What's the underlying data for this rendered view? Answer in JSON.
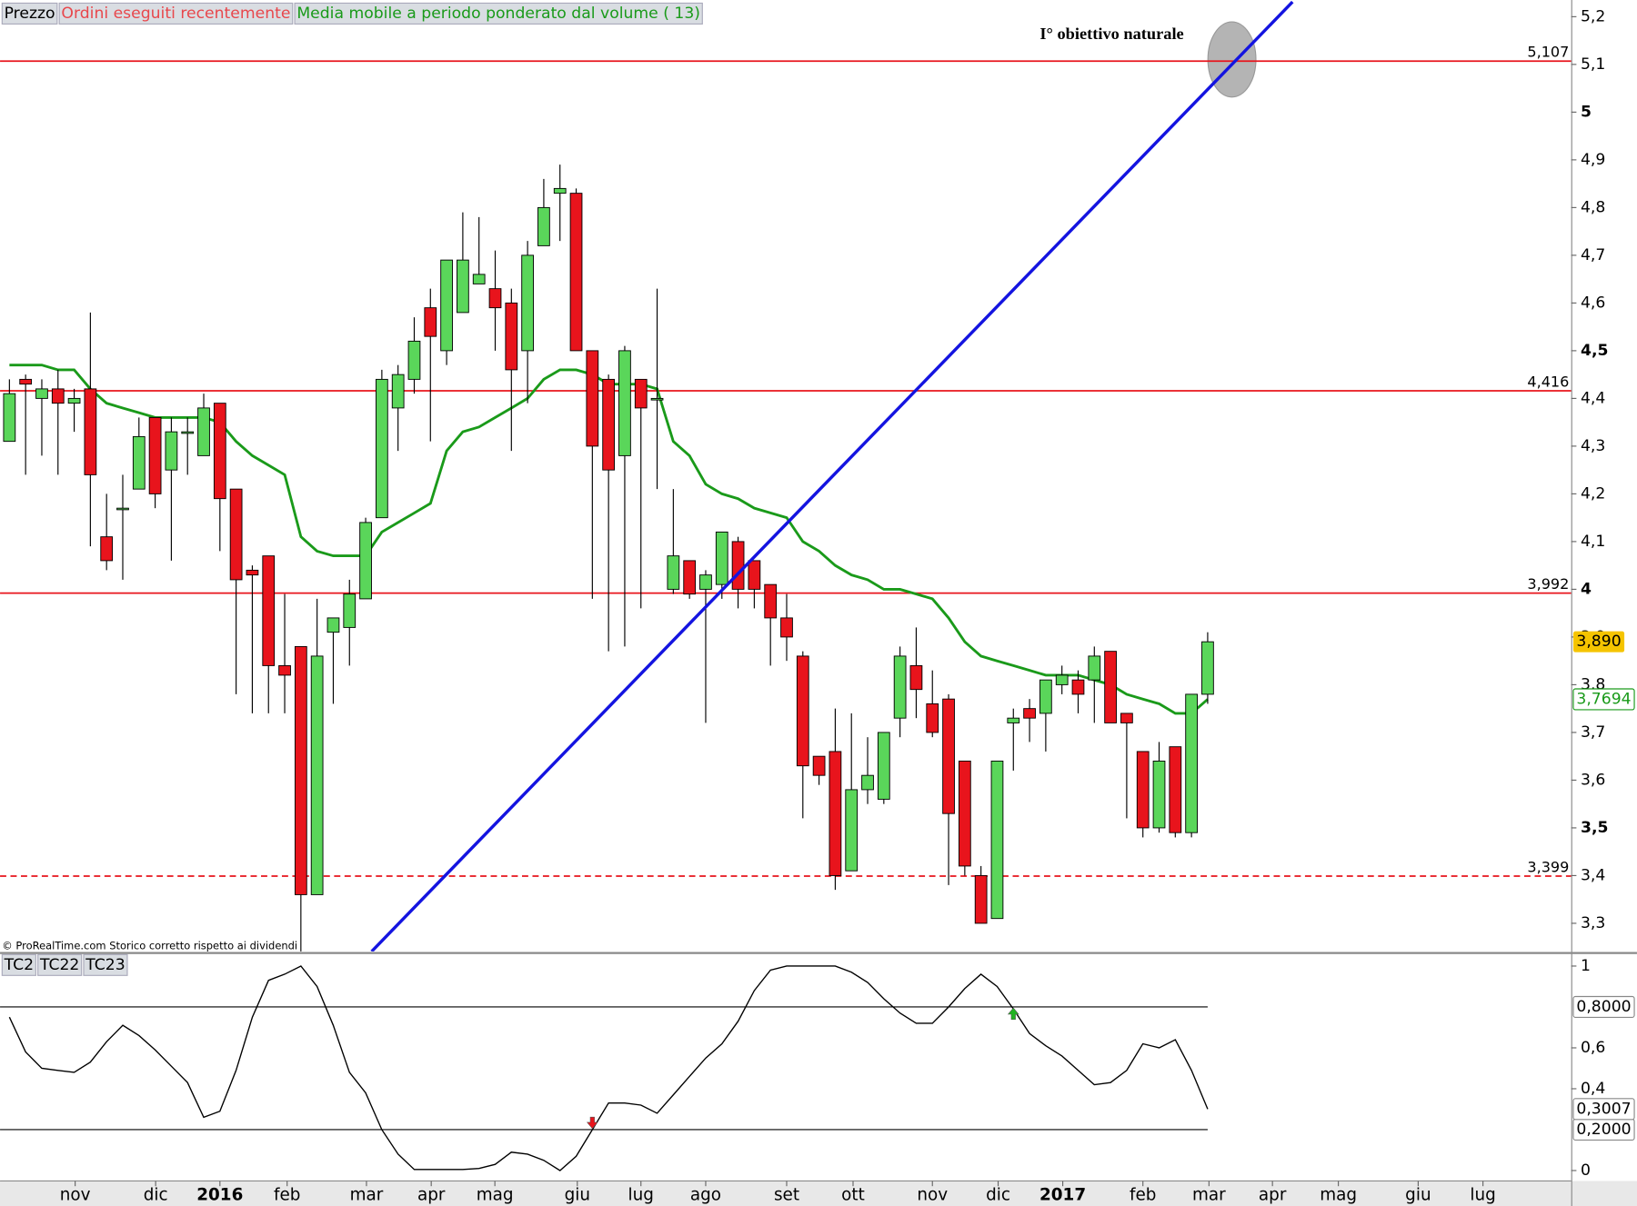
{
  "chart_data": [
    {
      "type": "candlestick",
      "labels": [
        {
          "text": "Prezzo",
          "color": "#000000"
        },
        {
          "text": "Ordini eseguiti recentemente",
          "color": "#e8474c"
        }
      ],
      "x": [
        0,
        1,
        2,
        3,
        4,
        5,
        6,
        7,
        8,
        9,
        10,
        11,
        12,
        13,
        14,
        15,
        16,
        17,
        18,
        19,
        20,
        21,
        22,
        23,
        24,
        25,
        26,
        27,
        28,
        29,
        30,
        31,
        32,
        33,
        34,
        35,
        36,
        37,
        38,
        39,
        40,
        41,
        42,
        43,
        44,
        45,
        46,
        47,
        48,
        49,
        50,
        51,
        52,
        53,
        54,
        55,
        56,
        57,
        58,
        59,
        60,
        61,
        62,
        63,
        64,
        65,
        66,
        67,
        68,
        69,
        70,
        71,
        72,
        73,
        74
      ],
      "open": [
        4.31,
        4.44,
        4.4,
        4.42,
        4.39,
        4.42,
        4.11,
        4.17,
        4.21,
        4.36,
        4.25,
        4.33,
        4.28,
        4.39,
        4.21,
        4.04,
        4.07,
        3.84,
        3.88,
        3.36,
        3.91,
        3.92,
        3.98,
        4.15,
        4.38,
        4.44,
        4.59,
        4.5,
        4.58,
        4.64,
        4.63,
        4.6,
        4.5,
        4.72,
        4.83,
        4.83,
        4.5,
        4.44,
        4.28,
        4.44,
        4.4,
        4.0,
        4.06,
        4.0,
        4.01,
        4.1,
        4.06,
        4.01,
        3.94,
        3.86,
        3.65,
        3.66,
        3.41,
        3.58,
        3.56,
        3.73,
        3.84,
        3.76,
        3.77,
        3.64,
        3.4,
        3.31,
        3.72,
        3.75,
        3.74,
        3.8,
        3.81,
        3.81,
        3.87,
        3.74,
        3.66,
        3.5,
        3.67,
        3.49,
        3.78
      ],
      "high": [
        4.44,
        4.45,
        4.44,
        4.46,
        4.42,
        4.58,
        4.2,
        4.24,
        4.36,
        4.36,
        4.36,
        4.36,
        4.41,
        4.39,
        4.21,
        4.05,
        4.07,
        3.99,
        3.88,
        3.98,
        3.94,
        4.02,
        4.15,
        4.46,
        4.47,
        4.57,
        4.63,
        4.69,
        4.79,
        4.78,
        4.71,
        4.63,
        4.73,
        4.86,
        4.89,
        4.84,
        4.5,
        4.45,
        4.51,
        4.44,
        4.63,
        4.21,
        4.06,
        4.04,
        4.12,
        4.11,
        4.06,
        4.01,
        3.99,
        3.87,
        3.65,
        3.75,
        3.74,
        3.69,
        3.7,
        3.88,
        3.92,
        3.83,
        3.78,
        3.64,
        3.42,
        3.64,
        3.75,
        3.77,
        3.81,
        3.84,
        3.83,
        3.88,
        3.87,
        3.74,
        3.66,
        3.68,
        3.67,
        3.78,
        3.91
      ],
      "low": [
        4.31,
        4.24,
        4.28,
        4.24,
        4.33,
        4.09,
        4.04,
        4.02,
        4.21,
        4.17,
        4.06,
        4.24,
        4.28,
        4.08,
        3.78,
        3.74,
        3.74,
        3.74,
        3.24,
        3.36,
        3.76,
        3.84,
        3.98,
        4.15,
        4.29,
        4.41,
        4.31,
        4.47,
        4.58,
        4.64,
        4.5,
        4.29,
        4.39,
        4.72,
        4.73,
        4.5,
        3.98,
        3.87,
        3.88,
        3.96,
        4.21,
        3.99,
        3.98,
        3.72,
        3.98,
        3.96,
        3.96,
        3.84,
        3.85,
        3.52,
        3.59,
        3.37,
        3.41,
        3.55,
        3.55,
        3.69,
        3.73,
        3.69,
        3.38,
        3.4,
        3.3,
        3.31,
        3.62,
        3.68,
        3.66,
        3.78,
        3.74,
        3.72,
        3.72,
        3.52,
        3.48,
        3.49,
        3.48,
        3.48,
        3.76
      ],
      "close": [
        4.41,
        4.43,
        4.42,
        4.39,
        4.4,
        4.24,
        4.06,
        4.17,
        4.32,
        4.2,
        4.33,
        4.33,
        4.38,
        4.19,
        4.02,
        4.03,
        3.84,
        3.82,
        3.36,
        3.86,
        3.94,
        3.99,
        4.14,
        4.44,
        4.45,
        4.52,
        4.53,
        4.69,
        4.69,
        4.66,
        4.59,
        4.46,
        4.7,
        4.8,
        4.84,
        4.5,
        4.3,
        4.25,
        4.5,
        4.38,
        4.4,
        4.07,
        3.99,
        4.03,
        4.12,
        4.0,
        4.0,
        3.94,
        3.9,
        3.63,
        3.61,
        3.4,
        3.58,
        3.61,
        3.7,
        3.86,
        3.79,
        3.7,
        3.53,
        3.42,
        3.3,
        3.64,
        3.73,
        3.73,
        3.81,
        3.82,
        3.78,
        3.86,
        3.72,
        3.72,
        3.5,
        3.64,
        3.49,
        3.78,
        3.89
      ],
      "last_close_label": "3,890",
      "up_color": "#5ad65a",
      "down_color": "#e8141c",
      "last_close_color": "#f5c400",
      "series": [
        {
          "name": "Media mobile a periodo ponderato dal volume ( 13)",
          "color": "#1a9a1a",
          "values": [
            4.47,
            4.47,
            4.47,
            4.46,
            4.46,
            4.42,
            4.39,
            4.38,
            4.37,
            4.36,
            4.36,
            4.36,
            4.36,
            4.35,
            4.31,
            4.28,
            4.26,
            4.24,
            4.11,
            4.08,
            4.07,
            4.07,
            4.07,
            4.12,
            4.14,
            4.16,
            4.18,
            4.29,
            4.33,
            4.34,
            4.36,
            4.38,
            4.4,
            4.44,
            4.46,
            4.46,
            4.45,
            4.43,
            4.43,
            4.43,
            4.42,
            4.31,
            4.28,
            4.22,
            4.2,
            4.19,
            4.17,
            4.16,
            4.15,
            4.1,
            4.08,
            4.05,
            4.03,
            4.02,
            4.0,
            4.0,
            3.99,
            3.98,
            3.94,
            3.89,
            3.86,
            3.85,
            3.84,
            3.83,
            3.82,
            3.82,
            3.82,
            3.81,
            3.8,
            3.78,
            3.77,
            3.76,
            3.74,
            3.74,
            3.7694
          ],
          "last_value_label": "3,7694"
        }
      ],
      "levels": [
        {
          "value": 5.107,
          "label": "5,107",
          "style": "solid"
        },
        {
          "value": 4.416,
          "label": "4,416",
          "style": "solid"
        },
        {
          "value": 3.992,
          "label": "3,992",
          "style": "solid"
        },
        {
          "value": 3.399,
          "label": "3,399",
          "style": "dashed"
        }
      ],
      "level_color": "#e8141c",
      "trendline": {
        "x": [
          22.37,
          79.24
        ],
        "y": [
          3.241,
          5.231
        ],
        "color": "#1414e0"
      },
      "annotation": "I° obiettivo naturale",
      "footer": "© ProRealTime.com Storico corretto rispetto ai dividendi",
      "xlim": [
        -0.58,
        96.45
      ],
      "ylim": [
        3.241,
        5.235
      ],
      "yticks": [
        {
          "value": 3.3,
          "label": "3,3"
        },
        {
          "value": 3.4,
          "label": "3,4"
        },
        {
          "value": 3.5,
          "label": "3,5"
        },
        {
          "value": 3.6,
          "label": "3,6"
        },
        {
          "value": 3.7,
          "label": "3,7"
        },
        {
          "value": 3.8,
          "label": "3,8"
        },
        {
          "value": 3.9,
          "label": "3,9"
        },
        4,
        {
          "value": 4.1,
          "label": "4,1"
        },
        {
          "value": 4.2,
          "label": "4,2"
        },
        {
          "value": 4.3,
          "label": "4,3"
        },
        {
          "value": 4.4,
          "label": "4,4"
        },
        {
          "value": 4.5,
          "label": "4,5"
        },
        {
          "value": 4.6,
          "label": "4,6"
        },
        {
          "value": 4.7,
          "label": "4,7"
        },
        {
          "value": 4.8,
          "label": "4,8"
        },
        {
          "value": 4.9,
          "label": "4,9"
        },
        5,
        {
          "value": 5.1,
          "label": "5,1"
        },
        {
          "value": 5.2,
          "label": "5,2"
        }
      ]
    },
    {
      "type": "line",
      "labels": [
        "TC2",
        "TC22",
        "TC23"
      ],
      "x": [
        0,
        1,
        2,
        3,
        4,
        5,
        6,
        7,
        8,
        9,
        10,
        11,
        12,
        13,
        14,
        15,
        16,
        17,
        18,
        19,
        20,
        21,
        22,
        23,
        24,
        25,
        26,
        27,
        28,
        29,
        30,
        31,
        32,
        33,
        34,
        35,
        36,
        37,
        38,
        39,
        40,
        41,
        42,
        43,
        44,
        45,
        46,
        47,
        48,
        49,
        50,
        51,
        52,
        53,
        54,
        55,
        56,
        57,
        58,
        59,
        60,
        61,
        62,
        63,
        64,
        65,
        66,
        67,
        68,
        69,
        70,
        71,
        72,
        73,
        74
      ],
      "values": [
        0.75,
        0.58,
        0.5,
        0.49,
        0.48,
        0.53,
        0.63,
        0.71,
        0.66,
        0.59,
        0.51,
        0.43,
        0.26,
        0.29,
        0.49,
        0.75,
        0.93,
        0.96,
        1.0,
        0.9,
        0.71,
        0.48,
        0.38,
        0.2,
        0.08,
        0.005,
        0.005,
        0.005,
        0.005,
        0.01,
        0.03,
        0.09,
        0.08,
        0.05,
        0.0,
        0.07,
        0.2,
        0.33,
        0.33,
        0.32,
        0.28,
        0.37,
        0.46,
        0.55,
        0.62,
        0.73,
        0.88,
        0.98,
        1.0,
        1.0,
        1.0,
        1.0,
        0.97,
        0.92,
        0.84,
        0.77,
        0.72,
        0.72,
        0.8,
        0.89,
        0.96,
        0.9,
        0.79,
        0.67,
        0.61,
        0.56,
        0.49,
        0.42,
        0.43,
        0.49,
        0.62,
        0.6,
        0.64,
        0.49,
        0.3007
      ],
      "color": "#000000",
      "last_value_label": "0,3007",
      "levels": [
        {
          "value": 0.8,
          "label": "0,8000"
        },
        {
          "value": 0.2,
          "label": "0,2000"
        }
      ],
      "signals": [
        {
          "x": 36,
          "value": 0.2,
          "color": "#e8141c"
        },
        {
          "x": 62,
          "value": 0.8,
          "color": "#22b422"
        }
      ],
      "xlim": [
        -0.58,
        96.45
      ],
      "ylim": [
        -0.051,
        1.051
      ],
      "yticks": [
        0,
        {
          "value": 0.4,
          "label": "0,4"
        },
        {
          "value": 0.6,
          "label": "0,6"
        },
        1
      ],
      "xticks": [
        {
          "value": 4.06,
          "label": "nov"
        },
        {
          "value": 9.03,
          "label": "dic"
        },
        {
          "value": 13.0,
          "label": "2016"
        },
        {
          "value": 17.15,
          "label": "feb"
        },
        {
          "value": 22.05,
          "label": "mar"
        },
        {
          "value": 26.05,
          "label": "apr"
        },
        {
          "value": 29.98,
          "label": "mag"
        },
        {
          "value": 35.07,
          "label": "giu"
        },
        {
          "value": 39.0,
          "label": "lug"
        },
        {
          "value": 43.0,
          "label": "ago"
        },
        {
          "value": 48.0,
          "label": "set"
        },
        {
          "value": 52.1,
          "label": "ott"
        },
        {
          "value": 57.0,
          "label": "nov"
        },
        {
          "value": 61.06,
          "label": "dic"
        },
        {
          "value": 65.05,
          "label": "2017"
        },
        {
          "value": 70.0,
          "label": "feb"
        },
        {
          "value": 74.08,
          "label": "mar"
        },
        {
          "value": 78.0,
          "label": "apr"
        },
        {
          "value": 82.07,
          "label": "mag"
        },
        {
          "value": 87.0,
          "label": "giu"
        },
        {
          "value": 91.0,
          "label": "lug"
        }
      ]
    }
  ]
}
